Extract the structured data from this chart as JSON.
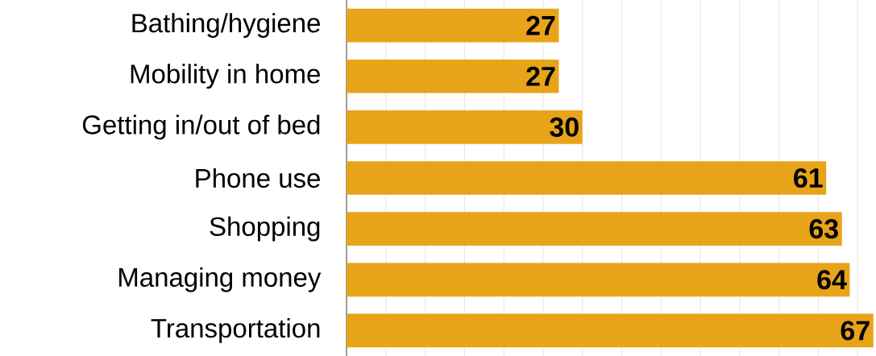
{
  "chart_data": {
    "type": "bar",
    "orientation": "horizontal",
    "categories": [
      "Bathing/hygiene",
      "Mobility in home",
      "Getting in/out of bed",
      "Phone use",
      "Shopping",
      "Managing money",
      "Transportation"
    ],
    "values": [
      27,
      27,
      30,
      61,
      63,
      64,
      67
    ],
    "color": "#e8a419",
    "data_labels": true,
    "grid": "x",
    "tick_labels": "y"
  }
}
